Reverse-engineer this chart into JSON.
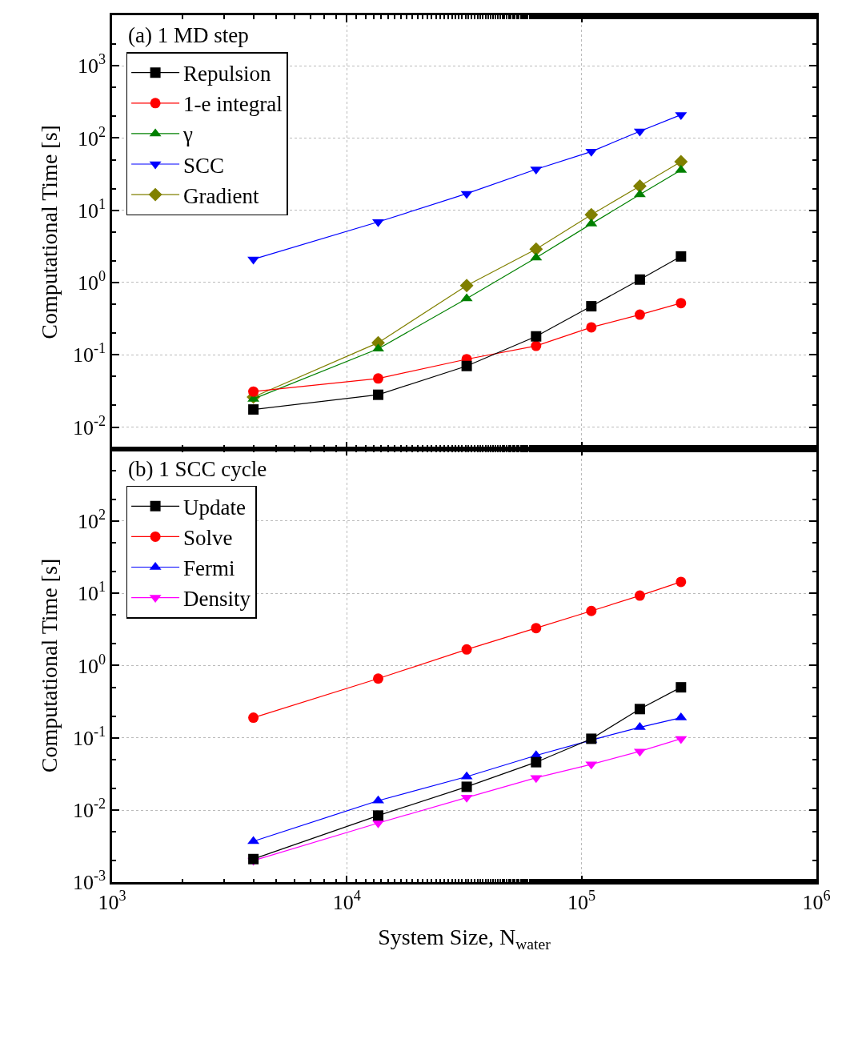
{
  "chart_data": [
    {
      "type": "line",
      "title": "(a) 1 MD step",
      "ylabel": "Computational Time [s]",
      "log": "xy",
      "grid": true,
      "legend": "top left",
      "tick_labels": "y",
      "x": [
        4000,
        13600,
        32400,
        64000,
        110000,
        177000,
        265000
      ],
      "xlim": [
        1000,
        1000000
      ],
      "xticks": [
        {
          "value": 1000,
          "label": "10$^{3}$"
        },
        {
          "value": 10000,
          "label": "10$^{4}$"
        },
        {
          "value": 100000,
          "label": "10$^{5}$"
        },
        {
          "value": 1000000,
          "label": "10$^{6}$"
        }
      ],
      "ylim": [
        0.005,
        5000
      ],
      "yticks": [
        {
          "value": 0.01,
          "label": "10$^{-2}$"
        },
        {
          "value": 0.1,
          "label": "10$^{-1}$"
        },
        {
          "value": 1,
          "label": "10$^{0}$"
        },
        {
          "value": 10,
          "label": "10$^{1}$"
        },
        {
          "value": 100,
          "label": "10$^{2}$"
        },
        {
          "value": 1000,
          "label": "10$^{3}$"
        }
      ],
      "series": [
        {
          "name": "Repulsion",
          "color": "#000000",
          "marker": "square",
          "values": [
            0.0175,
            0.028,
            0.07,
            0.18,
            0.47,
            1.1,
            2.3
          ]
        },
        {
          "name": "1-e integral",
          "color": "#ff0000",
          "marker": "circle",
          "values": [
            0.031,
            0.047,
            0.087,
            0.133,
            0.24,
            0.36,
            0.52
          ]
        },
        {
          "name": "γ",
          "color": "#008000",
          "marker": "triangle",
          "values": [
            0.0245,
            0.121,
            0.6,
            2.2,
            6.5,
            16.5,
            36
          ]
        },
        {
          "name": "SCC",
          "color": "#0000ff",
          "marker": "triangle-down",
          "values": [
            2.1,
            6.9,
            17,
            37,
            65,
            124,
            210
          ]
        },
        {
          "name": "Gradient",
          "color": "#808000",
          "marker": "diamond",
          "values": [
            0.026,
            0.147,
            0.91,
            2.9,
            8.7,
            21.6,
            47
          ]
        }
      ]
    },
    {
      "type": "line",
      "title": "(b) 1 SCC cycle",
      "xlabel": "System Size, N$_{water}$",
      "ylabel": "Computational Time [s]",
      "log": "xy",
      "grid": true,
      "legend": "top left",
      "x": [
        4000,
        13600,
        32400,
        64000,
        110000,
        177000,
        265000
      ],
      "xlim": [
        1000,
        1000000
      ],
      "xticks": [
        {
          "value": 1000,
          "label": "10$^{3}$"
        },
        {
          "value": 10000,
          "label": "10$^{4}$"
        },
        {
          "value": 100000,
          "label": "10$^{5}$"
        },
        {
          "value": 1000000,
          "label": "10$^{6}$"
        }
      ],
      "ylim": [
        0.001,
        1000
      ],
      "yticks": [
        {
          "value": 0.001,
          "label": "10$^{-3}$"
        },
        {
          "value": 0.01,
          "label": "10$^{-2}$"
        },
        {
          "value": 0.1,
          "label": "10$^{-1}$"
        },
        {
          "value": 1,
          "label": "10$^{0}$"
        },
        {
          "value": 10,
          "label": "10$^{1}$"
        },
        {
          "value": 100,
          "label": "10$^{2}$"
        }
      ],
      "series": [
        {
          "name": "Update",
          "color": "#000000",
          "marker": "square",
          "values": [
            0.0021,
            0.0084,
            0.021,
            0.046,
            0.097,
            0.25,
            0.5
          ]
        },
        {
          "name": "Solve",
          "color": "#ff0000",
          "marker": "circle",
          "values": [
            0.19,
            0.66,
            1.67,
            3.3,
            5.7,
            9.3,
            14.4
          ]
        },
        {
          "name": "Fermi",
          "color": "#0000ff",
          "marker": "triangle",
          "values": [
            0.0037,
            0.0135,
            0.029,
            0.057,
            0.093,
            0.14,
            0.19
          ]
        },
        {
          "name": "Density",
          "color": "#ff00ff",
          "marker": "triangle-down",
          "values": [
            0.002,
            0.0066,
            0.0149,
            0.028,
            0.043,
            0.065,
            0.097
          ]
        }
      ]
    }
  ]
}
